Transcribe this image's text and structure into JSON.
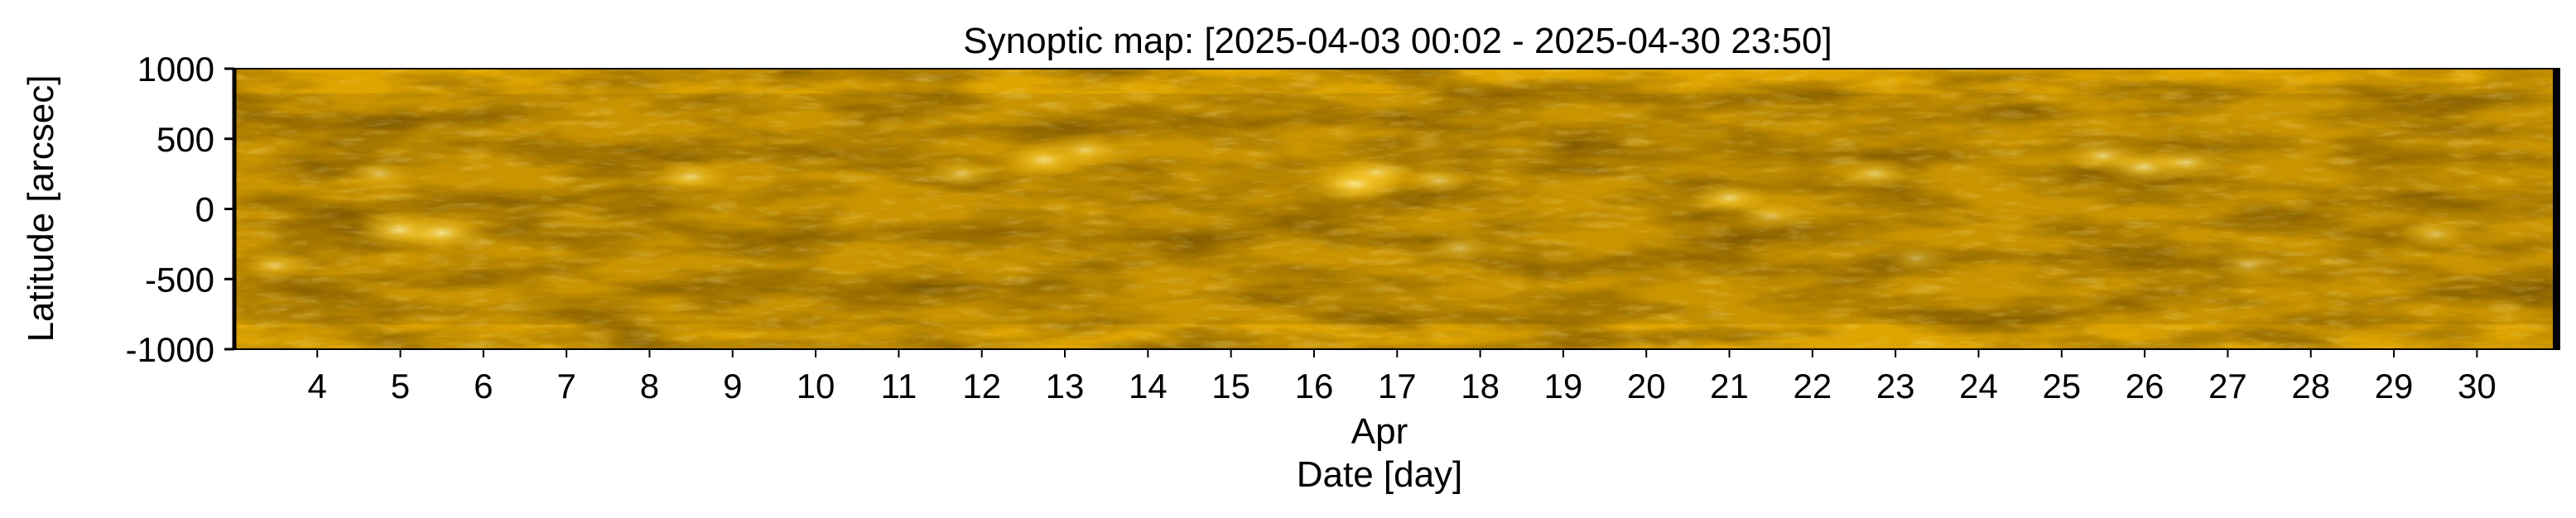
{
  "chart_data": {
    "type": "heatmap",
    "title": "Synoptic map: [2025-04-03 00:02 - 2025-04-30 23:50]",
    "xlabel": "Date [day]",
    "x_sublabel": "Apr",
    "ylabel": "Latitude [arcsec]",
    "xlim": [
      "2025-04-03 00:02",
      "2025-04-30 23:50"
    ],
    "ylim": [
      -1000,
      1000
    ],
    "x_ticks": [
      {
        "value": "2025-04-04",
        "label": "4"
      },
      {
        "value": "2025-04-05",
        "label": "5"
      },
      {
        "value": "2025-04-06",
        "label": "6"
      },
      {
        "value": "2025-04-07",
        "label": "7"
      },
      {
        "value": "2025-04-08",
        "label": "8"
      },
      {
        "value": "2025-04-09",
        "label": "9"
      },
      {
        "value": "2025-04-10",
        "label": "10"
      },
      {
        "value": "2025-04-11",
        "label": "11"
      },
      {
        "value": "2025-04-12",
        "label": "12"
      },
      {
        "value": "2025-04-13",
        "label": "13"
      },
      {
        "value": "2025-04-14",
        "label": "14"
      },
      {
        "value": "2025-04-15",
        "label": "15"
      },
      {
        "value": "2025-04-16",
        "label": "16"
      },
      {
        "value": "2025-04-17",
        "label": "17"
      },
      {
        "value": "2025-04-18",
        "label": "18"
      },
      {
        "value": "2025-04-19",
        "label": "19"
      },
      {
        "value": "2025-04-20",
        "label": "20"
      },
      {
        "value": "2025-04-21",
        "label": "21"
      },
      {
        "value": "2025-04-22",
        "label": "22"
      },
      {
        "value": "2025-04-23",
        "label": "23"
      },
      {
        "value": "2025-04-24",
        "label": "24"
      },
      {
        "value": "2025-04-25",
        "label": "25"
      },
      {
        "value": "2025-04-26",
        "label": "26"
      },
      {
        "value": "2025-04-27",
        "label": "27"
      },
      {
        "value": "2025-04-28",
        "label": "28"
      },
      {
        "value": "2025-04-29",
        "label": "29"
      },
      {
        "value": "2025-04-30",
        "label": "30"
      }
    ],
    "y_ticks": [
      {
        "value": 1000,
        "label": "1000"
      },
      {
        "value": 500,
        "label": "500"
      },
      {
        "value": 0,
        "label": "0"
      },
      {
        "value": -500,
        "label": "-500"
      },
      {
        "value": -1000,
        "label": "-1000"
      }
    ],
    "colormap": "solar EUV (dark brown to gold to pale yellow)",
    "colors": {
      "dark": "#6b4a04",
      "mid": "#b98a0a",
      "bright": "#f0b800",
      "highlight": "#ffe680"
    },
    "bright_regions": [
      {
        "date": "2025-04-05 00:00",
        "lat": -150,
        "intensity": 0.9
      },
      {
        "date": "2025-04-05 12:00",
        "lat": -170,
        "intensity": 0.9
      },
      {
        "date": "2025-04-04 18:00",
        "lat": 250,
        "intensity": 0.6
      },
      {
        "date": "2025-04-08 12:00",
        "lat": 230,
        "intensity": 0.7
      },
      {
        "date": "2025-04-12 18:00",
        "lat": 350,
        "intensity": 0.8
      },
      {
        "date": "2025-04-13 06:00",
        "lat": 420,
        "intensity": 0.7
      },
      {
        "date": "2025-04-16 12:00",
        "lat": 180,
        "intensity": 0.95
      },
      {
        "date": "2025-04-16 18:00",
        "lat": 260,
        "intensity": 0.7
      },
      {
        "date": "2025-04-17 12:00",
        "lat": 200,
        "intensity": 0.6
      },
      {
        "date": "2025-04-17 18:00",
        "lat": -280,
        "intensity": 0.6
      },
      {
        "date": "2025-04-21 00:00",
        "lat": 80,
        "intensity": 0.75
      },
      {
        "date": "2025-04-21 12:00",
        "lat": -50,
        "intensity": 0.6
      },
      {
        "date": "2025-04-22 18:00",
        "lat": 250,
        "intensity": 0.7
      },
      {
        "date": "2025-04-23 06:00",
        "lat": -350,
        "intensity": 0.55
      },
      {
        "date": "2025-04-25 12:00",
        "lat": 380,
        "intensity": 0.75
      },
      {
        "date": "2025-04-26 00:00",
        "lat": 300,
        "intensity": 0.8
      },
      {
        "date": "2025-04-26 12:00",
        "lat": 330,
        "intensity": 0.7
      },
      {
        "date": "2025-04-27 06:00",
        "lat": -400,
        "intensity": 0.55
      },
      {
        "date": "2025-04-29 12:00",
        "lat": -180,
        "intensity": 0.6
      },
      {
        "date": "2025-04-03 12:00",
        "lat": -400,
        "intensity": 0.6
      },
      {
        "date": "2025-04-11 18:00",
        "lat": 250,
        "intensity": 0.6
      }
    ],
    "grid": false,
    "legend": false
  }
}
